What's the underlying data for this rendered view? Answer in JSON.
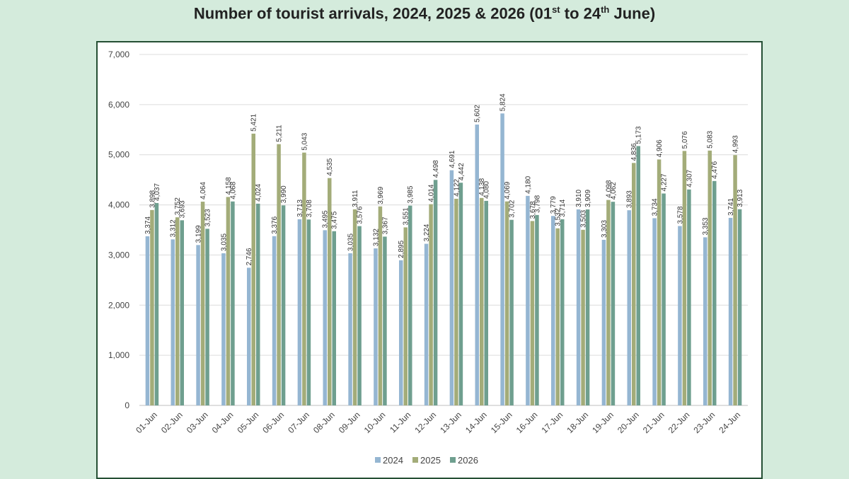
{
  "title": {
    "prefix": "Number of tourist arrivals, 2024, 2025 & 2026 (01",
    "sup1": "st",
    "middle": " to 24",
    "sup2": "th",
    "suffix": " June)"
  },
  "chart_data": {
    "type": "bar",
    "title": "Number of tourist arrivals, 2024, 2025 & 2026 (01st to 24th June)",
    "xlabel": "",
    "ylabel": "",
    "ylim": [
      0,
      7000
    ],
    "yticks": [
      0,
      1000,
      2000,
      3000,
      4000,
      5000,
      6000,
      7000
    ],
    "ytick_labels": [
      "0",
      "1,000",
      "2,000",
      "3,000",
      "4,000",
      "5,000",
      "6,000",
      "7,000"
    ],
    "grid": true,
    "legend_position": "bottom",
    "categories": [
      "01-Jun",
      "02-Jun",
      "03-Jun",
      "04-Jun",
      "05-Jun",
      "06-Jun",
      "07-Jun",
      "08-Jun",
      "09-Jun",
      "10-Jun",
      "11-Jun",
      "12-Jun",
      "13-Jun",
      "14-Jun",
      "15-Jun",
      "16-Jun",
      "17-Jun",
      "18-Jun",
      "19-Jun",
      "20-Jun",
      "21-Jun",
      "22-Jun",
      "23-Jun",
      "24-Jun"
    ],
    "series": [
      {
        "name": "2024",
        "color": "#95b6d2",
        "values": [
          3374,
          3312,
          3199,
          3035,
          2746,
          3376,
          3713,
          3495,
          3035,
          3132,
          2895,
          3224,
          4691,
          5602,
          5824,
          4180,
          3779,
          3910,
          3303,
          3893,
          3734,
          3578,
          3353,
          3741
        ]
      },
      {
        "name": "2025",
        "color": "#a3ac79",
        "values": [
          3898,
          3752,
          4064,
          4158,
          5421,
          5211,
          5043,
          4535,
          3911,
          3969,
          3551,
          4014,
          4122,
          4138,
          4069,
          3678,
          3532,
          3503,
          4098,
          4836,
          4906,
          5076,
          5083,
          4993
        ]
      },
      {
        "name": "2026",
        "color": "#6f9f8f",
        "values": [
          4037,
          3693,
          3523,
          4068,
          4024,
          3990,
          3708,
          3475,
          3576,
          3367,
          3985,
          4498,
          4442,
          4080,
          3702,
          3798,
          3714,
          3909,
          4062,
          5173,
          4227,
          4307,
          4476,
          3913
        ]
      }
    ]
  }
}
